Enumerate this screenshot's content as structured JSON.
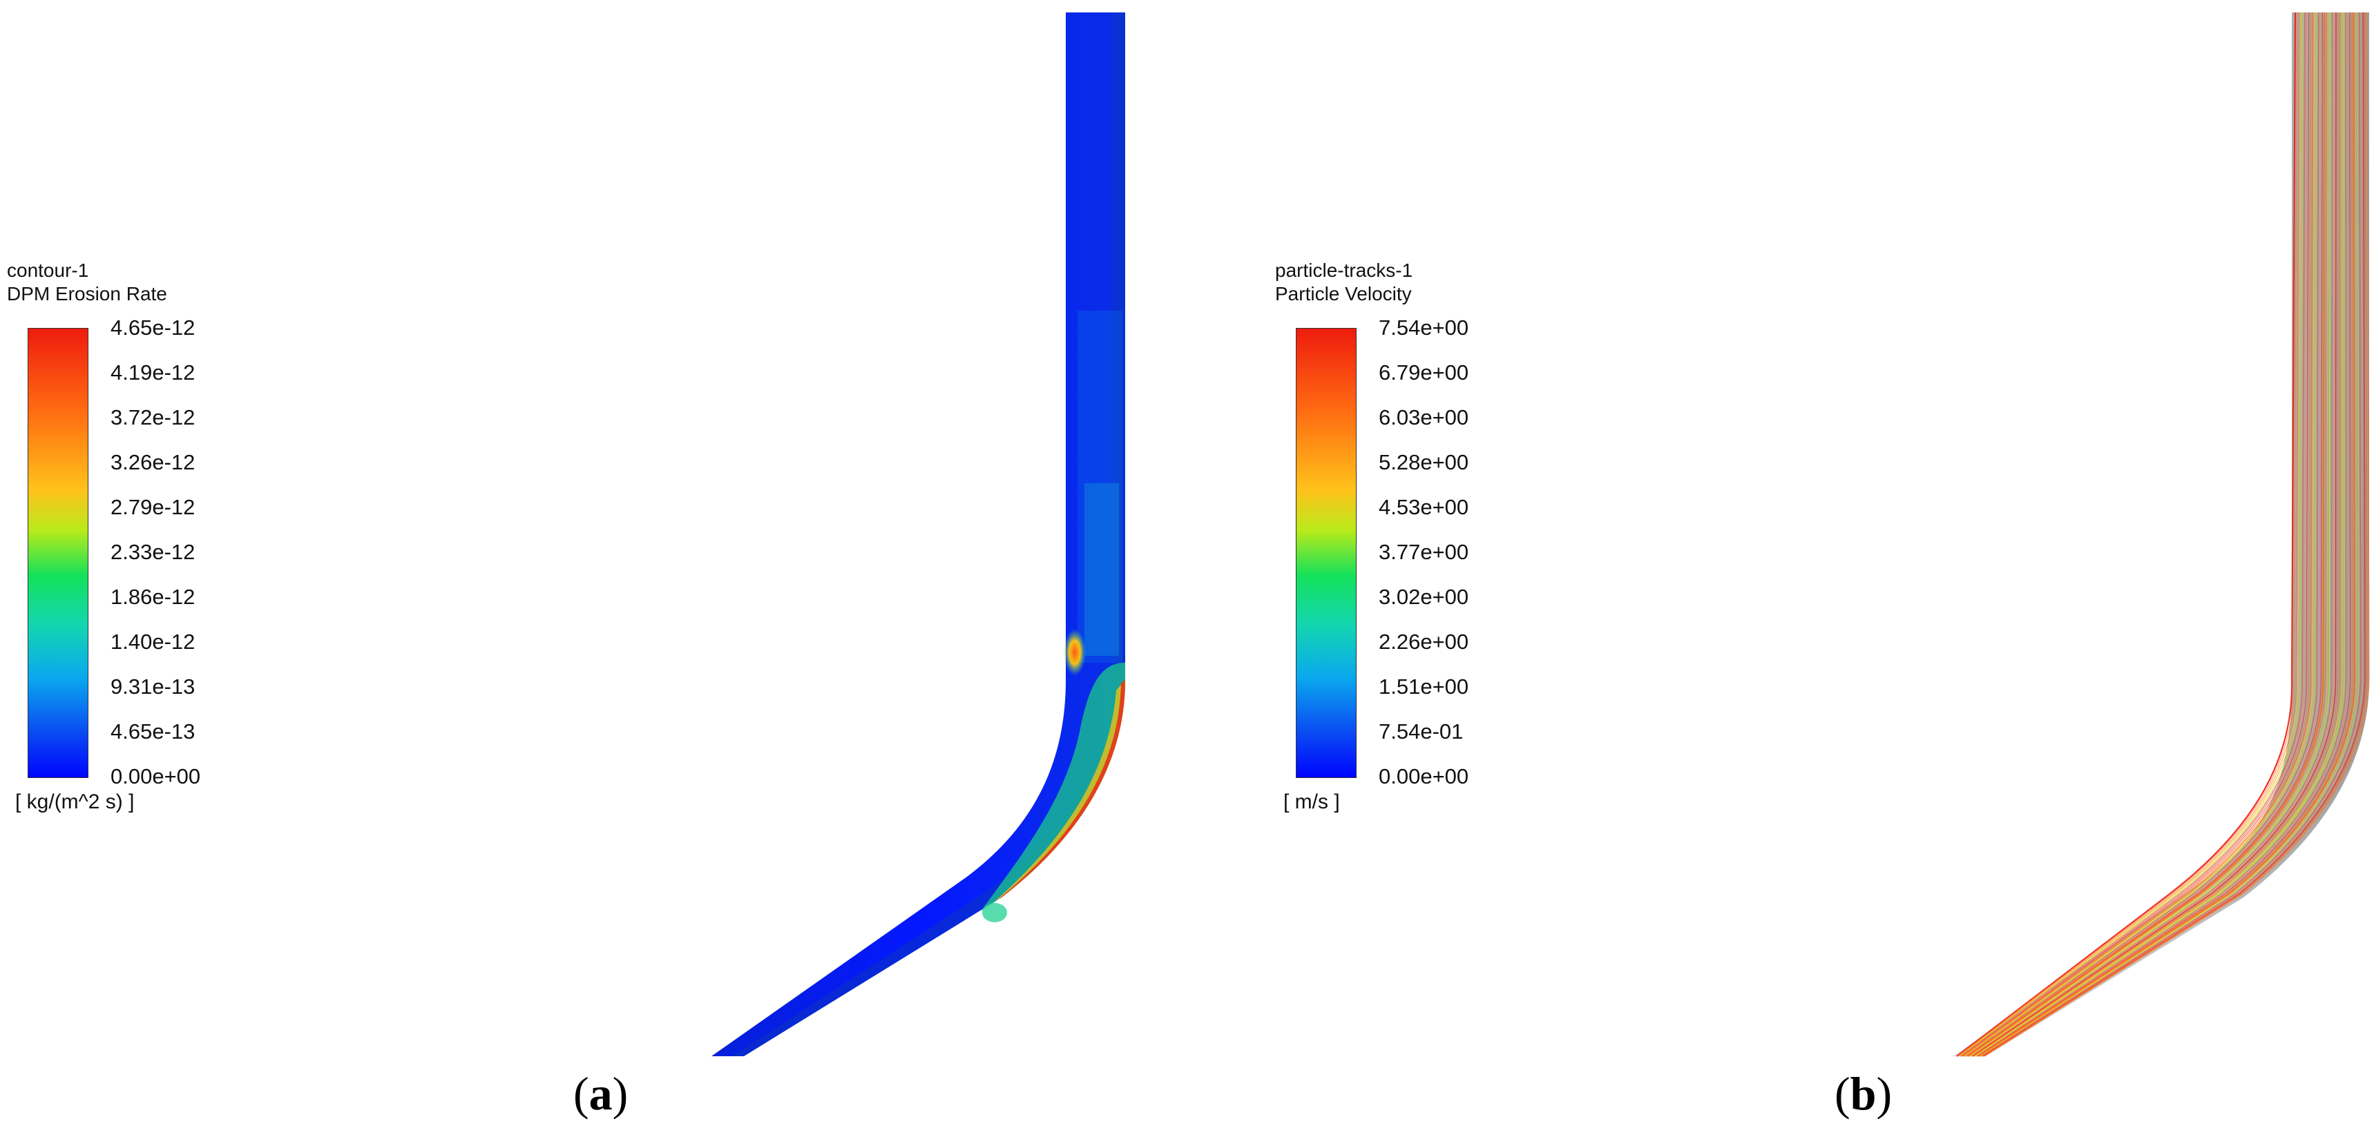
{
  "panel_a": {
    "legend": {
      "name": "contour-1",
      "quantity": "DPM Erosion Rate",
      "ticks": [
        "4.65e-12",
        "4.19e-12",
        "3.72e-12",
        "3.26e-12",
        "2.79e-12",
        "2.33e-12",
        "1.86e-12",
        "1.40e-12",
        "9.31e-13",
        "4.65e-13",
        "0.00e+00"
      ],
      "unit": "[ kg/(m^2 s) ]"
    },
    "label": {
      "open": "(",
      "letter": "a",
      "close": ")"
    }
  },
  "panel_b": {
    "legend": {
      "name": "particle-tracks-1",
      "quantity": "Particle Velocity",
      "ticks": [
        "7.54e+00",
        "6.79e+00",
        "6.03e+00",
        "5.28e+00",
        "4.53e+00",
        "3.77e+00",
        "3.02e+00",
        "2.26e+00",
        "1.51e+00",
        "7.54e-01",
        "0.00e+00"
      ],
      "unit": "[ m/s ]"
    },
    "label": {
      "open": "(",
      "letter": "b",
      "close": ")"
    }
  },
  "colormap": [
    "#ee1c0e",
    "#ff6a12",
    "#ffc21a",
    "#b9ea1a",
    "#14e15a",
    "#13d6b0",
    "#0aa7ef",
    "#0a4bf2",
    "#0005ff"
  ]
}
